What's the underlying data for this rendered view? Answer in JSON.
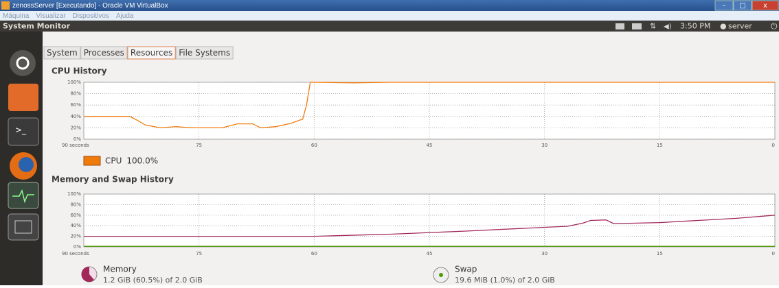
{
  "window": {
    "title": "zenossServer [Executando] - Oracle VM VirtualBox"
  },
  "menu": [
    "Máquina",
    "Visualizar",
    "Dispositivos",
    "Ajuda"
  ],
  "panel": {
    "app": "System Monitor",
    "time": "3:50 PM",
    "user": "server"
  },
  "tabs": [
    "System",
    "Processes",
    "Resources",
    "File Systems"
  ],
  "active_tab": 2,
  "chart_data": [
    {
      "type": "line",
      "title": "CPU History",
      "x": [
        90,
        86,
        84,
        83,
        82,
        80,
        78,
        76,
        74,
        72,
        70,
        68,
        67,
        65,
        63,
        62,
        61.5,
        61,
        60.5,
        60,
        55,
        50,
        45,
        40,
        30,
        20,
        10,
        0
      ],
      "series": [
        {
          "name": "CPU",
          "color": "#f07b0d",
          "current": "100.0%",
          "values": [
            40,
            40,
            40,
            33,
            25,
            20,
            22,
            20,
            20,
            20,
            27,
            27,
            20,
            22,
            28,
            33,
            35,
            60,
            100,
            100,
            99,
            100,
            100,
            100,
            100,
            100,
            100,
            100
          ]
        }
      ],
      "xlim": [
        90,
        0
      ],
      "ylim": [
        0,
        100
      ],
      "xticks": [
        {
          "value": 90,
          "label": "90 seconds"
        },
        75,
        60,
        45,
        30,
        15,
        0
      ],
      "yticks": [
        {
          "value": 0,
          "label": "0%"
        },
        {
          "value": 20,
          "label": "20%"
        },
        {
          "value": 40,
          "label": "40%"
        },
        {
          "value": 60,
          "label": "60%"
        },
        {
          "value": 80,
          "label": "80%"
        },
        {
          "value": 100,
          "label": "100%"
        }
      ],
      "grid": true
    },
    {
      "type": "line",
      "title": "Memory and Swap History",
      "x": [
        90,
        80,
        70,
        60,
        50,
        40,
        30,
        27,
        25,
        24,
        22,
        21,
        15,
        5,
        0
      ],
      "series": [
        {
          "name": "Memory",
          "color": "#a2285a",
          "current": "1.2 GiB (60.5%) of 2.0 GiB",
          "values": [
            20,
            20,
            20,
            20,
            24,
            30,
            37,
            39,
            45,
            50,
            51,
            44,
            46,
            54,
            60
          ]
        },
        {
          "name": "Swap",
          "color": "#4e9a06",
          "current": "19.6 MiB (1.0%) of 2.0 GiB",
          "values": [
            1,
            1,
            1,
            1,
            1,
            1,
            1,
            1,
            1,
            1,
            1,
            1,
            1,
            1,
            1
          ]
        }
      ],
      "xlim": [
        90,
        0
      ],
      "ylim": [
        0,
        100
      ],
      "xticks": [
        {
          "value": 90,
          "label": "90 seconds"
        },
        75,
        60,
        45,
        30,
        15,
        0
      ],
      "yticks": [
        {
          "value": 0,
          "label": "0%"
        },
        {
          "value": 20,
          "label": "20%"
        },
        {
          "value": 40,
          "label": "40%"
        },
        {
          "value": 60,
          "label": "60%"
        },
        {
          "value": 80,
          "label": "80%"
        },
        {
          "value": 100,
          "label": "100%"
        }
      ],
      "grid": true
    }
  ]
}
